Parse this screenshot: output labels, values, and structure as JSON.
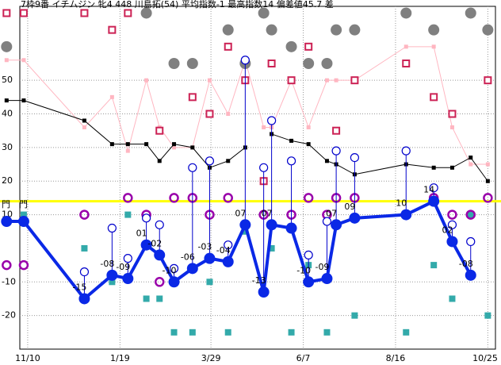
{
  "chart_data": {
    "type": "line",
    "title": "7枠9番 イチムジン 牝4 448 川島拓(54) 平均指数-1 最高指数14 偏差値45.7 差",
    "annotations": [
      "門",
      "門"
    ],
    "x": [
      "10/25",
      "11/7",
      "12/23",
      "1/13",
      "1/25",
      "2/8",
      "2/18",
      "3/1",
      "3/15",
      "3/28",
      "4/11",
      "4/24",
      "5/8",
      "5/14",
      "5/29",
      "6/11",
      "6/25",
      "7/2",
      "7/16",
      "8/24",
      "9/14",
      "9/28",
      "10/12",
      "10/25"
    ],
    "xlim": [
      "10/20",
      "11/4"
    ],
    "xticks": [
      "11/10",
      "1/19",
      "3/29",
      "6/7",
      "8/16",
      "10/25"
    ],
    "ylim": [
      -30,
      72
    ],
    "yticks": [
      -20,
      -10,
      10,
      20,
      30,
      40,
      50
    ],
    "grid": true,
    "hline": {
      "value": 14,
      "color": "#ffff00"
    },
    "series": [
      {
        "color": "#0a28e6",
        "style": "line",
        "marker": "big-dot",
        "values": [
          8,
          8,
          -15,
          -8,
          -9,
          1,
          -2,
          -10,
          -6,
          -3,
          -4,
          7,
          -13,
          7,
          6,
          -10,
          -9,
          7,
          9,
          10,
          14,
          2,
          -8,
          null
        ],
        "value_labels": [
          null,
          null,
          "-15",
          "-08",
          "-09",
          "01",
          "-02",
          "-10",
          "-06",
          "-03",
          "-04",
          "07",
          "-13",
          "07",
          null,
          "-10",
          "-09",
          "07",
          "09",
          "10",
          "14",
          "02",
          "-08",
          null
        ]
      },
      {
        "color": "#000000",
        "style": "line",
        "marker": "square",
        "values": [
          44,
          44,
          38,
          31,
          31,
          31,
          26,
          31,
          30,
          24,
          26,
          30,
          null,
          34,
          32,
          31,
          26,
          25,
          22,
          25,
          24,
          24,
          27,
          20
        ]
      },
      {
        "color": "#ffb6c1",
        "style": "line",
        "marker": "square",
        "values": [
          56,
          56,
          36,
          45,
          29,
          50,
          36,
          30,
          30,
          50,
          40,
          56,
          36,
          36,
          50,
          36,
          50,
          50,
          50,
          60,
          60,
          36,
          25,
          25
        ]
      },
      {
        "color": "#808080",
        "style": "none",
        "marker": "big-dot",
        "values": [
          60,
          null,
          null,
          null,
          null,
          70,
          null,
          55,
          55,
          null,
          65,
          55,
          70,
          65,
          60,
          55,
          55,
          65,
          65,
          70,
          65,
          null,
          70,
          65
        ]
      },
      {
        "color": "#cc2255",
        "style": "none",
        "marker": "open-square",
        "values": [
          70,
          70,
          70,
          65,
          70,
          null,
          35,
          null,
          45,
          40,
          60,
          50,
          20,
          55,
          50,
          60,
          null,
          35,
          50,
          55,
          45,
          40,
          null,
          50
        ]
      },
      {
        "color": "#33aaaa",
        "style": "none",
        "marker": "square-large",
        "values": [
          null,
          10,
          0,
          -10,
          10,
          -15,
          -15,
          -25,
          -25,
          -10,
          -25,
          5,
          null,
          0,
          -25,
          -5,
          -25,
          null,
          -20,
          -25,
          -5,
          -15,
          10,
          -20
        ]
      },
      {
        "color": "#9900aa",
        "style": "none",
        "marker": "open-circle-thick",
        "values": [
          -5,
          -5,
          10,
          null,
          15,
          10,
          -10,
          15,
          15,
          10,
          15,
          null,
          10,
          null,
          10,
          15,
          10,
          15,
          15,
          10,
          15,
          10,
          10,
          15
        ]
      },
      {
        "color": "#0000cc",
        "style": "none",
        "marker": "open-circle",
        "stem_to": 0,
        "values": [
          null,
          null,
          -7,
          6,
          -3,
          9,
          7,
          -6,
          24,
          26,
          1,
          56,
          24,
          38,
          26,
          -2,
          8,
          29,
          27,
          29,
          18,
          7,
          2,
          null
        ]
      }
    ]
  }
}
